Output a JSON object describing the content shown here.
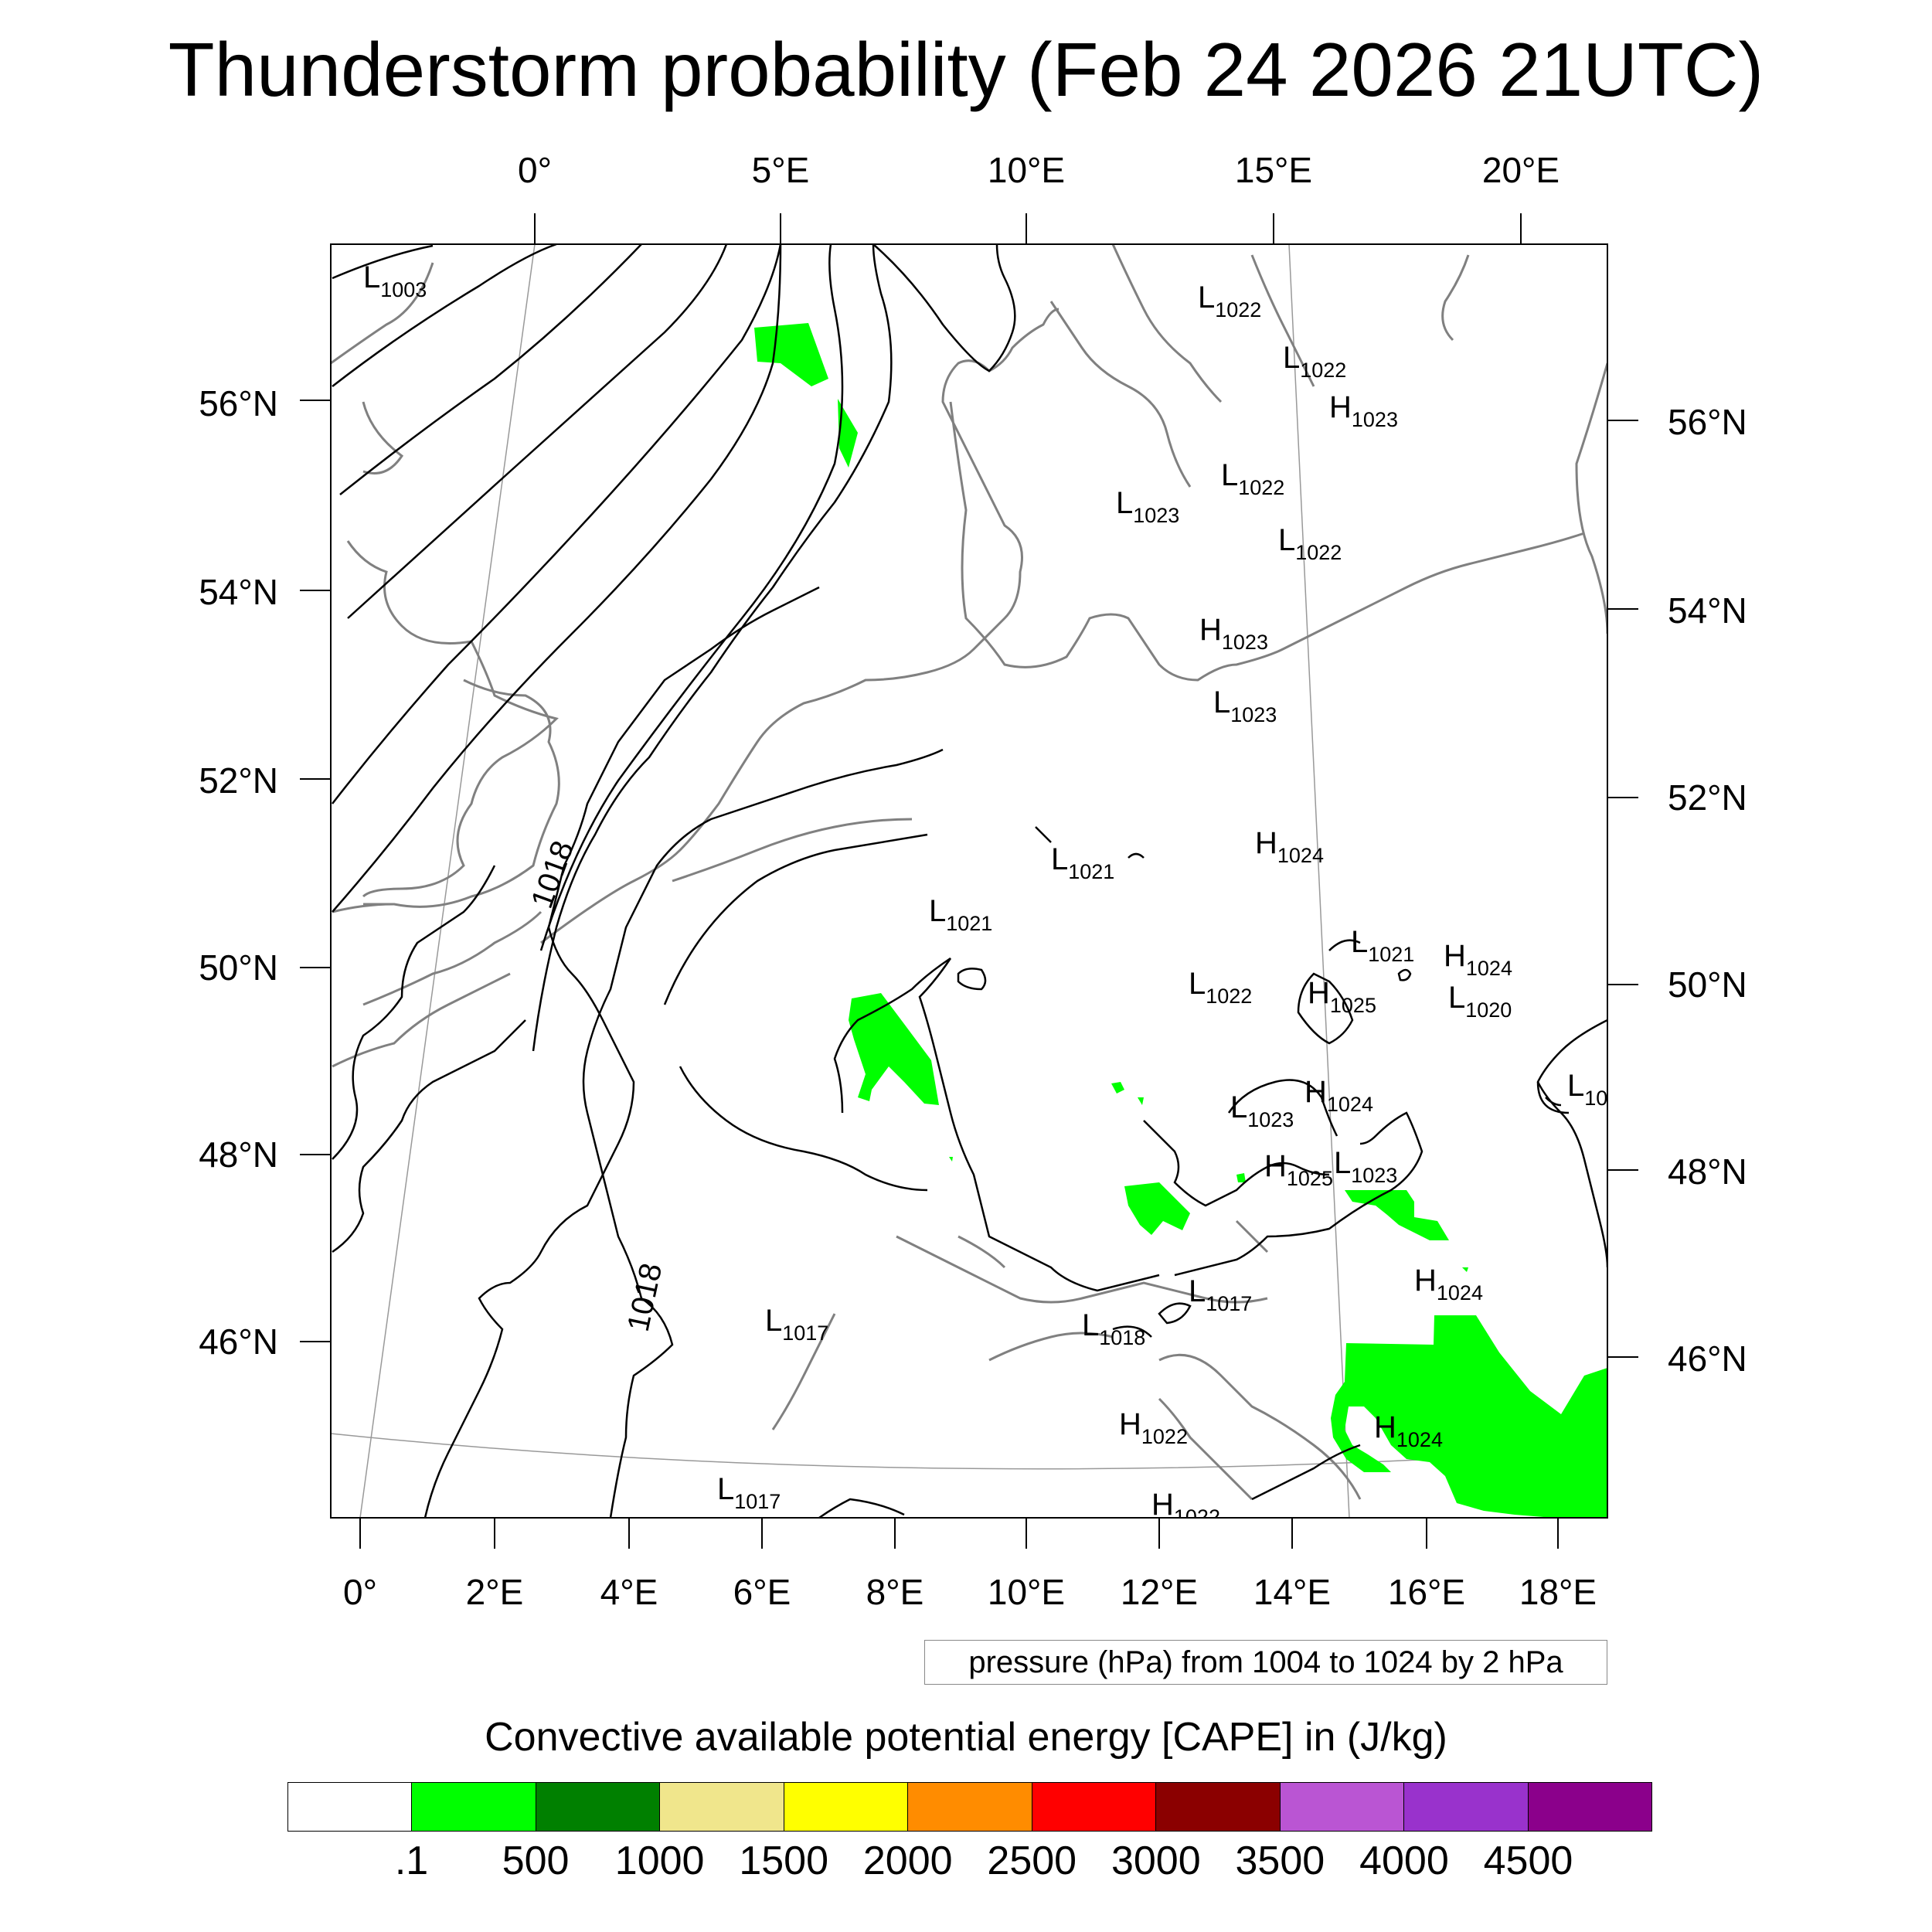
{
  "title": "Thunderstorm probability (Feb 24 2026 21UTC)",
  "axes": {
    "top_lon_ticks": [
      "0°",
      "5°E",
      "10°E",
      "15°E",
      "20°E"
    ],
    "bottom_lon_ticks": [
      "0°",
      "2°E",
      "4°E",
      "6°E",
      "8°E",
      "10°E",
      "12°E",
      "14°E",
      "16°E",
      "18°E"
    ],
    "left_lat_ticks": [
      "56°N",
      "54°N",
      "52°N",
      "50°N",
      "48°N",
      "46°N"
    ],
    "right_lat_ticks": [
      "56°N",
      "54°N",
      "52°N",
      "50°N",
      "48°N",
      "46°N"
    ]
  },
  "contour_info": "pressure (hPa) from 1004 to 1024 by 2 hPa",
  "contour_line_labels": [
    "1018",
    "1018"
  ],
  "pressure_centers": [
    {
      "type": "L",
      "value": "1003"
    },
    {
      "type": "L",
      "value": "1022"
    },
    {
      "type": "L",
      "value": "1022"
    },
    {
      "type": "H",
      "value": "1023"
    },
    {
      "type": "L",
      "value": "1022"
    },
    {
      "type": "L",
      "value": "1023"
    },
    {
      "type": "L",
      "value": "1022"
    },
    {
      "type": "H",
      "value": "1023"
    },
    {
      "type": "L",
      "value": "1023"
    },
    {
      "type": "H",
      "value": "1024"
    },
    {
      "type": "L",
      "value": "1021"
    },
    {
      "type": "L",
      "value": "1021"
    },
    {
      "type": "L",
      "value": "1021"
    },
    {
      "type": "H",
      "value": "1024"
    },
    {
      "type": "L",
      "value": "1022"
    },
    {
      "type": "H",
      "value": "1025"
    },
    {
      "type": "L",
      "value": "1020"
    },
    {
      "type": "H",
      "value": "1024"
    },
    {
      "type": "L",
      "value": "1023"
    },
    {
      "type": "L",
      "value": "10"
    },
    {
      "type": "H",
      "value": "1025"
    },
    {
      "type": "L",
      "value": "1023"
    },
    {
      "type": "H",
      "value": "1024"
    },
    {
      "type": "L",
      "value": "1017"
    },
    {
      "type": "L",
      "value": "1017"
    },
    {
      "type": "L",
      "value": "1018"
    },
    {
      "type": "H",
      "value": "1022"
    },
    {
      "type": "H",
      "value": "1024"
    },
    {
      "type": "L",
      "value": "1017"
    },
    {
      "type": "H",
      "value": "1022"
    }
  ],
  "colorbar": {
    "title": "Convective available potential energy [CAPE] in (J/kg)",
    "colors": [
      "#ffffff",
      "#00ff00",
      "#008000",
      "#f0e68c",
      "#ffff00",
      "#ff8c00",
      "#ff0000",
      "#8b0000",
      "#ba55d3",
      "#9932cc",
      "#8b008b"
    ],
    "labels": [
      ".1",
      "500",
      "1000",
      "1500",
      "2000",
      "2500",
      "3000",
      "3500",
      "4000",
      "4500"
    ]
  },
  "map_colors": {
    "cape_fill": "#00ff00",
    "coastline": "#808080",
    "isobar": "#000000",
    "graticule": "#999999"
  }
}
